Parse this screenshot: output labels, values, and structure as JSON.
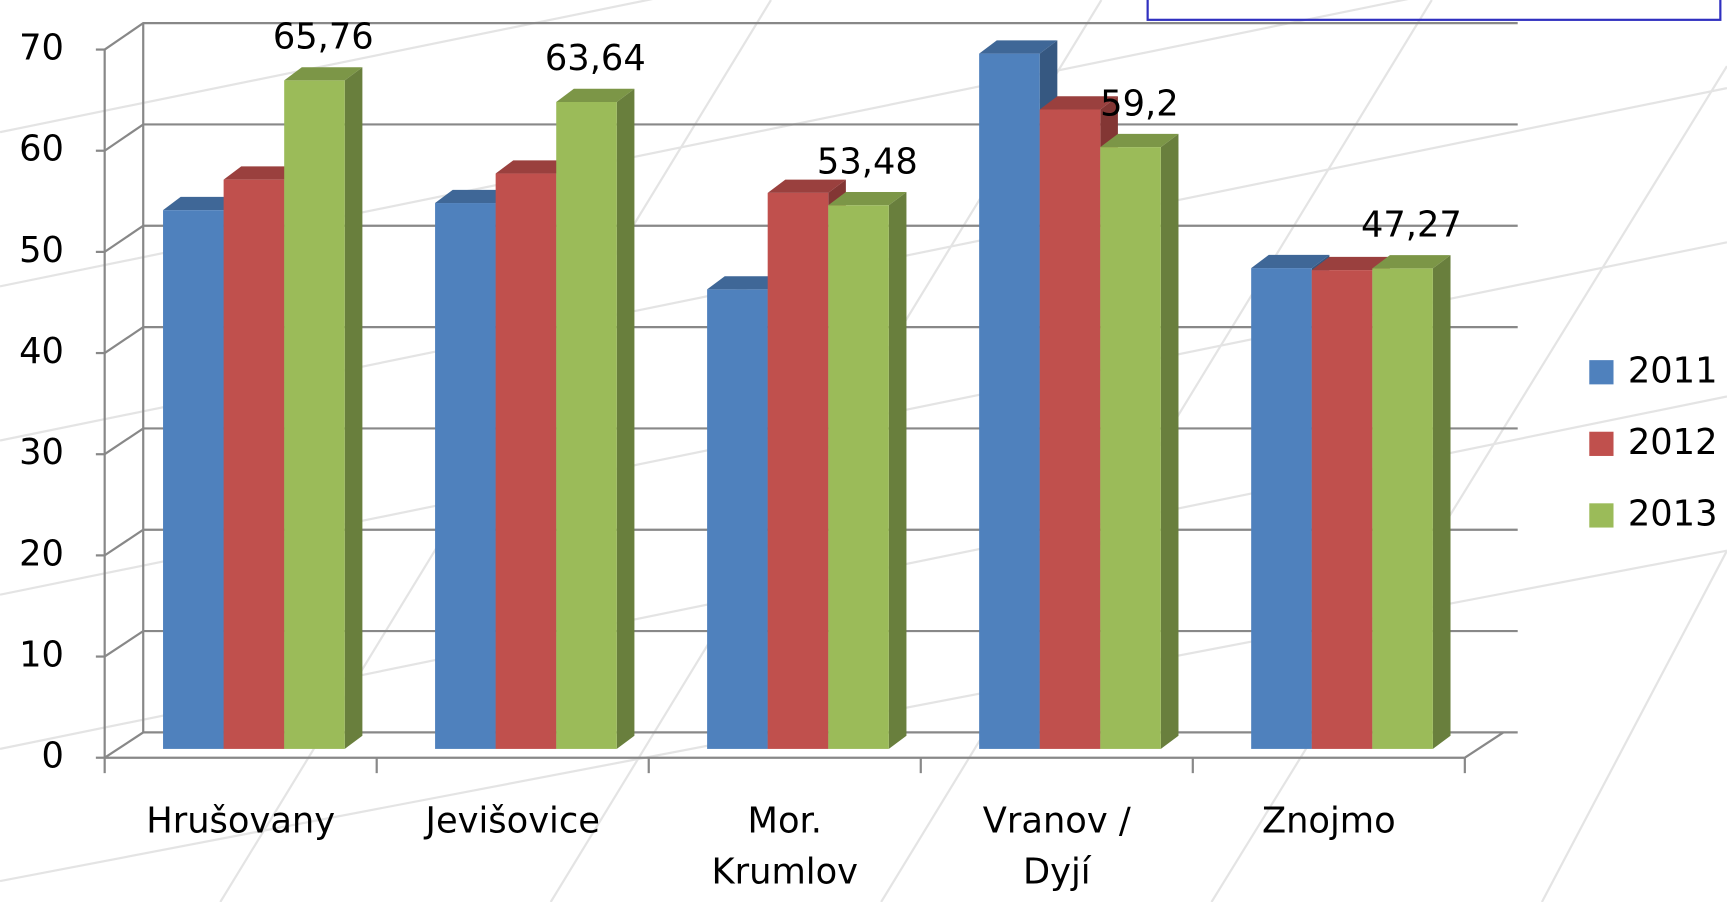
{
  "chart_data": {
    "type": "bar3d",
    "categories": [
      "Hrušovany",
      "Jevišovice",
      "Mor. Krumlov",
      "Vranov / Dyjí",
      "Znojmo"
    ],
    "series": [
      {
        "name": "2011",
        "color": "#4f81bd",
        "values": [
          53.0,
          53.7,
          45.2,
          68.4,
          47.3
        ]
      },
      {
        "name": "2012",
        "color": "#c0504d",
        "values": [
          56.0,
          56.6,
          54.7,
          62.9,
          47.1
        ]
      },
      {
        "name": "2013",
        "color": "#9bbb59",
        "values": [
          65.76,
          63.64,
          53.48,
          59.2,
          47.27
        ],
        "value_labels": [
          "65,76",
          "63,64",
          "53,48",
          "59,2",
          "47,27"
        ]
      }
    ],
    "ylim": [
      0,
      70
    ],
    "yticks": [
      0,
      10,
      20,
      30,
      40,
      50,
      60,
      70
    ],
    "grid": true,
    "legend": "right"
  }
}
